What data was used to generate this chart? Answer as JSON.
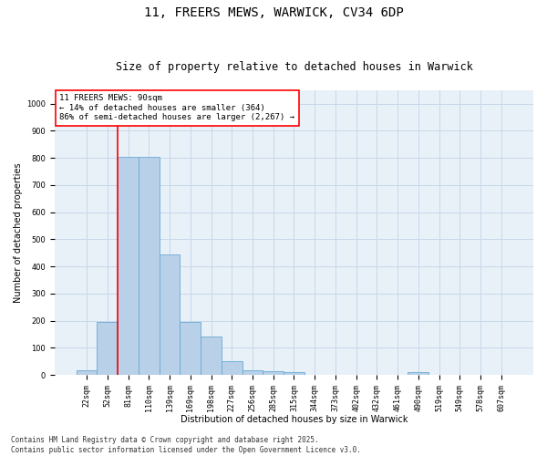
{
  "title_line1": "11, FREERS MEWS, WARWICK, CV34 6DP",
  "title_line2": "Size of property relative to detached houses in Warwick",
  "xlabel": "Distribution of detached houses by size in Warwick",
  "ylabel": "Number of detached properties",
  "bar_labels": [
    "22sqm",
    "52sqm",
    "81sqm",
    "110sqm",
    "139sqm",
    "169sqm",
    "198sqm",
    "227sqm",
    "256sqm",
    "285sqm",
    "315sqm",
    "344sqm",
    "373sqm",
    "402sqm",
    "432sqm",
    "461sqm",
    "490sqm",
    "519sqm",
    "549sqm",
    "578sqm",
    "607sqm"
  ],
  "bar_values": [
    18,
    195,
    805,
    805,
    445,
    197,
    140,
    50,
    18,
    13,
    12,
    0,
    0,
    0,
    0,
    0,
    12,
    0,
    0,
    0,
    0
  ],
  "bar_color": "#b8d0e8",
  "bar_edge_color": "#6aaad4",
  "vline_color": "red",
  "annotation_text": "11 FREERS MEWS: 90sqm\n← 14% of detached houses are smaller (364)\n86% of semi-detached houses are larger (2,267) →",
  "annotation_box_color": "red",
  "annotation_box_facecolor": "white",
  "ylim": [
    0,
    1050
  ],
  "yticks": [
    0,
    100,
    200,
    300,
    400,
    500,
    600,
    700,
    800,
    900,
    1000
  ],
  "grid_color": "#c8d8ea",
  "bg_color": "#e8f0f8",
  "footer_text": "Contains HM Land Registry data © Crown copyright and database right 2025.\nContains public sector information licensed under the Open Government Licence v3.0.",
  "title_fontsize": 10,
  "subtitle_fontsize": 8.5,
  "annotation_fontsize": 6.5,
  "footer_fontsize": 5.5,
  "tick_fontsize": 6,
  "axis_label_fontsize": 7
}
